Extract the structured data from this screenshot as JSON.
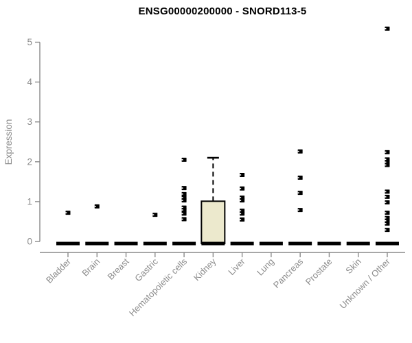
{
  "chart_data": {
    "type": "boxplot",
    "title": "ENSG00000200000 - SNORD113-5",
    "ylabel": "Expression",
    "xlabel": "",
    "ylim": [
      0,
      5
    ],
    "y_ticks": [
      0,
      1,
      2,
      3,
      4,
      5
    ],
    "grid": false,
    "legend": "none",
    "categories": [
      "Bladder",
      "Brain",
      "Breast",
      "Gastric",
      "Hematopoietic cells",
      "Kidney",
      "Liver",
      "Lung",
      "Pancreas",
      "Prostate",
      "Skin",
      "Unknown / Other"
    ],
    "zero_median_bar_all_categories": true,
    "boxes": [
      {
        "category": "Kidney",
        "whisker_low": 0,
        "q1": 0,
        "median": 0,
        "q3": 1.01,
        "whisker_high": 2.1
      }
    ],
    "points": [
      {
        "category": "Bladder",
        "values": [
          0.72
        ]
      },
      {
        "category": "Brain",
        "values": [
          0.88
        ]
      },
      {
        "category": "Breast",
        "values": []
      },
      {
        "category": "Gastric",
        "values": [
          0.67
        ]
      },
      {
        "category": "Hematopoietic cells",
        "values": [
          2.05,
          1.34,
          1.19,
          1.1,
          1.03,
          0.85,
          0.79,
          0.7,
          0.56
        ]
      },
      {
        "category": "Kidney",
        "values": []
      },
      {
        "category": "Liver",
        "values": [
          1.67,
          1.33,
          1.1,
          1.03,
          0.77,
          0.7,
          0.55
        ]
      },
      {
        "category": "Lung",
        "values": []
      },
      {
        "category": "Pancreas",
        "values": [
          2.26,
          1.6,
          1.22,
          0.79
        ]
      },
      {
        "category": "Prostate",
        "values": []
      },
      {
        "category": "Skin",
        "values": []
      },
      {
        "category": "Unknown / Other",
        "values": [
          5.34,
          2.24,
          2.06,
          1.99,
          1.92,
          1.25,
          1.12,
          0.98,
          0.72,
          0.59,
          0.52,
          0.45,
          0.29
        ]
      }
    ],
    "colors": {
      "background": "#ffffff",
      "title_text": "#000000",
      "axis": "#8a8a8a",
      "tick_text": "#8c8c8c",
      "marker": "#000000",
      "marker_notch": "#ffffff",
      "box_fill": "#ece9cd",
      "box_border": "#000000",
      "median_bar": "#000000"
    },
    "marker_shape": "small-square"
  }
}
